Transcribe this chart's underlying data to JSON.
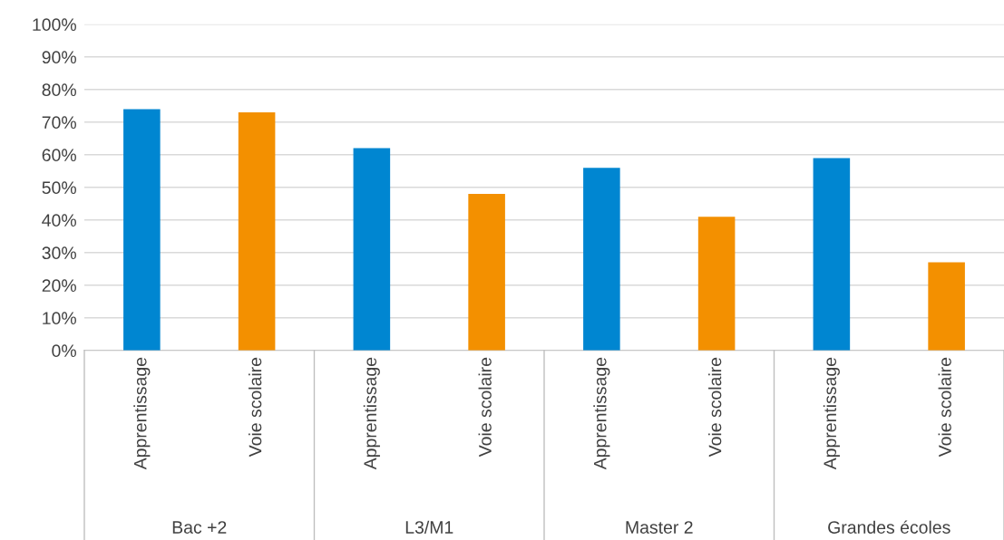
{
  "chart_data": {
    "type": "bar",
    "categories": [
      "Apprentissage",
      "Voie scolaire",
      "Apprentissage",
      "Voie scolaire",
      "Apprentissage",
      "Voie scolaire",
      "Apprentissage",
      "Voie scolaire"
    ],
    "values": [
      74,
      73,
      62,
      48,
      56,
      41,
      59,
      27
    ],
    "colors": [
      "#0086d1",
      "#f39000",
      "#0086d1",
      "#f39000",
      "#0086d1",
      "#f39000",
      "#0086d1",
      "#f39000"
    ],
    "annotations": [
      "Bac +2",
      "L3/M1",
      "Master 2",
      "Grandes écoles"
    ],
    "ylim": [
      0,
      100
    ],
    "yticks": [
      {
        "value": 0,
        "label": "0%"
      },
      {
        "value": 10,
        "label": "10%"
      },
      {
        "value": 20,
        "label": "20%"
      },
      {
        "value": 30,
        "label": "30%"
      },
      {
        "value": 40,
        "label": "40%"
      },
      {
        "value": 50,
        "label": "50%"
      },
      {
        "value": 60,
        "label": "60%"
      },
      {
        "value": 70,
        "label": "70%"
      },
      {
        "value": 80,
        "label": "80%"
      },
      {
        "value": 90,
        "label": "90%"
      },
      {
        "value": 100,
        "label": "100%"
      }
    ],
    "grid": "y"
  }
}
